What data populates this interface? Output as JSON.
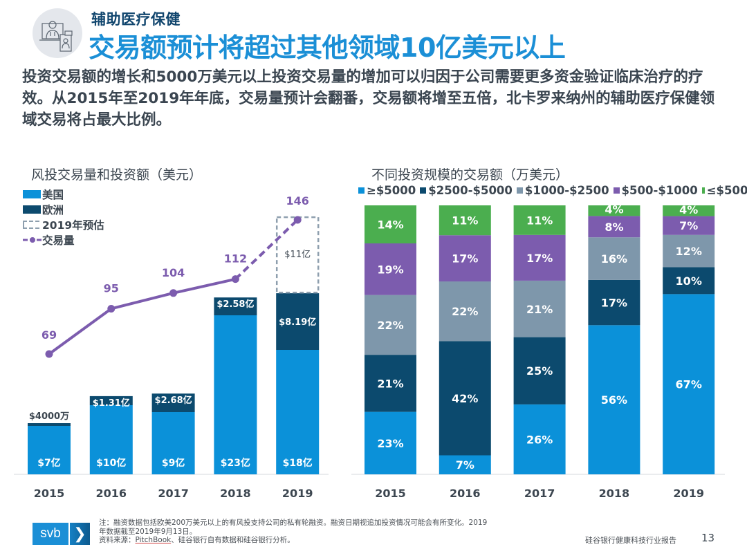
{
  "header": {
    "icon": "telehealth-doctor-icon",
    "subtitle": "辅助医疗保健",
    "title": "交易额预计将超过其他领域10亿美元以上",
    "intro": "投资交易额的增长和5000万美元以上投资交易量的增加可以归因于公司需要更多资金验证临床治疗的疗效。从2015年至2019年年底，交易量预计会翻番，交易额将增至五倍，北卡罗来纳州的辅助医疗保健领域交易将占最大比例。"
  },
  "colors": {
    "us": "#0b91d9",
    "europe": "#0c4a6e",
    "forecast_border": "#8e9fae",
    "deals_line": "#7c5cae",
    "size_ge5000": "#0b91d9",
    "size_2500_5000": "#0c4a6e",
    "size_1000_2500": "#7e97ab",
    "size_500_1000": "#7c5cae",
    "size_le500": "#4bae4f"
  },
  "chart_data": [
    {
      "type": "bar",
      "title": "风投交易量和投资额（美元）",
      "categories": [
        "2015",
        "2016",
        "2017",
        "2018",
        "2019"
      ],
      "stacked": true,
      "legend": [
        "美国",
        "欧洲",
        "2019年预估",
        "交易量"
      ],
      "legend_position": "top-left",
      "series": [
        {
          "name": "美国",
          "values": [
            7,
            10,
            9,
            23,
            18
          ],
          "unit": "亿美元",
          "labels": [
            "$7亿",
            "$10亿",
            "$9亿",
            "$23亿",
            "$18亿"
          ]
        },
        {
          "name": "欧洲",
          "values": [
            0.4,
            1.31,
            2.68,
            2.58,
            8.19
          ],
          "unit": "亿美元",
          "labels": [
            "$4000万",
            "$1.31亿",
            "$2.68亿",
            "$2.58亿",
            "$8.19亿"
          ]
        },
        {
          "name": "2019年预估",
          "values": [
            null,
            null,
            null,
            null,
            11
          ],
          "unit": "亿美元",
          "labels": [
            "",
            "",
            "",
            "",
            "$11亿"
          ]
        }
      ],
      "line_series": {
        "name": "交易量",
        "values": [
          69,
          95,
          104,
          112,
          146
        ],
        "dashed_from_index": 3
      },
      "ylim_amount": [
        0,
        38
      ],
      "ylim_deals": [
        0,
        150
      ],
      "grid": false
    },
    {
      "type": "bar",
      "title": "不同投资规模的交易额（万美元）",
      "categories": [
        "2015",
        "2016",
        "2017",
        "2018",
        "2019"
      ],
      "stacked": true,
      "percent": true,
      "legend_position": "top",
      "series": [
        {
          "name": "≥$5000",
          "key": "size_ge5000",
          "values": [
            23,
            7,
            26,
            56,
            67
          ]
        },
        {
          "name": "$2500-$5000",
          "key": "size_2500_5000",
          "values": [
            21,
            42,
            25,
            17,
            10
          ]
        },
        {
          "name": "$1000-$2500",
          "key": "size_1000_2500",
          "values": [
            22,
            22,
            21,
            16,
            12
          ]
        },
        {
          "name": "$500-$1000",
          "key": "size_500_1000",
          "values": [
            19,
            17,
            17,
            8,
            7
          ]
        },
        {
          "name": "≤$500",
          "key": "size_le500",
          "values": [
            14,
            11,
            11,
            4,
            4
          ]
        }
      ],
      "ylim": [
        0,
        100
      ],
      "grid": false
    }
  ],
  "footer": {
    "note_line1": "注：融资数据包括欧美200万美元以上的有风投支持公司的私有轮融资。融资日期视追加投资情况可能会有所变化。2019",
    "note_line2": "年数据截至2019年9月13日。",
    "source_prefix": "资料来源：",
    "source_link": "PitchBook",
    "source_rest": "、硅谷银行自有数据和硅谷银行分析。",
    "report_name": "硅谷银行健康科技行业报告",
    "page_number": "13",
    "logo_text": "svb",
    "logo_chevron": "❯"
  }
}
